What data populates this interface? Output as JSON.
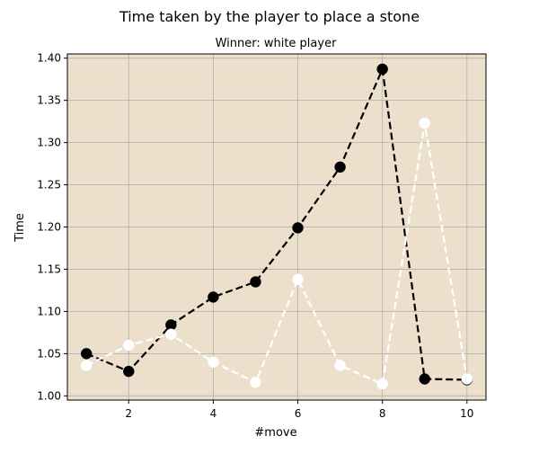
{
  "chart_data": {
    "type": "line",
    "title": "Time taken by the player to place a stone",
    "subtitle": "Winner: white player",
    "xlabel": "#move",
    "ylabel": "Time",
    "xlim": [
      0.55,
      10.45
    ],
    "ylim": [
      0.995,
      1.405
    ],
    "xticks": [
      2,
      4,
      6,
      8,
      10
    ],
    "yticks": [
      1.0,
      1.05,
      1.1,
      1.15,
      1.2,
      1.25,
      1.3,
      1.35,
      1.4
    ],
    "ytick_labels": [
      "1.00",
      "1.05",
      "1.10",
      "1.15",
      "1.20",
      "1.25",
      "1.30",
      "1.35",
      "1.40"
    ],
    "grid": true,
    "background_color": "#ecdfcc",
    "series": [
      {
        "color": "#000000",
        "x": [
          1,
          2,
          3,
          4,
          5,
          6,
          7,
          8,
          9,
          10
        ],
        "values": [
          1.05,
          1.029,
          1.084,
          1.117,
          1.135,
          1.199,
          1.271,
          1.387,
          1.02,
          1.019
        ]
      },
      {
        "color": "#ffffff",
        "x": [
          1,
          2,
          3,
          4,
          5,
          6,
          7,
          8,
          9,
          10
        ],
        "values": [
          1.036,
          1.06,
          1.073,
          1.04,
          1.016,
          1.138,
          1.036,
          1.014,
          1.323,
          1.02
        ]
      }
    ]
  }
}
